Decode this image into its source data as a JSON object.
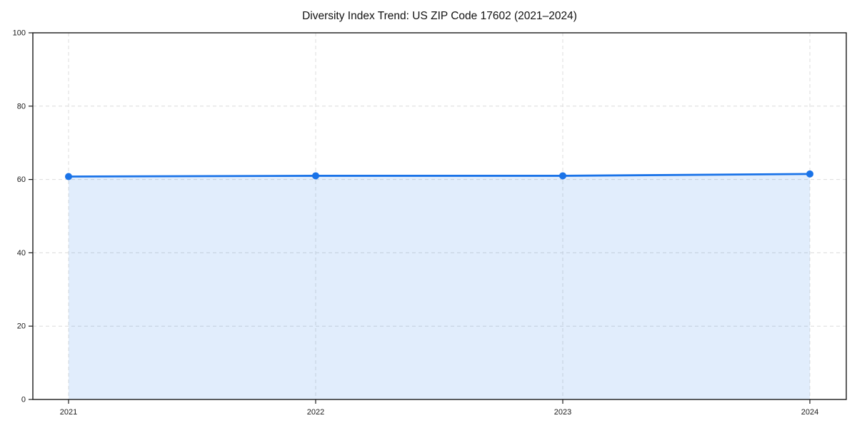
{
  "chart_data": {
    "type": "area",
    "title": "Diversity Index Trend: US ZIP Code 17602 (2021–2024)",
    "xlabel": "",
    "ylabel": "",
    "categories": [
      "2021",
      "2022",
      "2023",
      "2024"
    ],
    "series": [
      {
        "name": "Diversity Index",
        "values": [
          60.8,
          61.0,
          61.0,
          61.5
        ]
      }
    ],
    "ylim": [
      0,
      100
    ],
    "yticks": [
      0,
      20,
      40,
      60,
      80,
      100
    ],
    "grid": "dashed, horizontal and vertical",
    "legend_position": "none",
    "line_color": "#1a73e8",
    "marker": "circle",
    "fill_color": "rgba(26,115,232,0.13)",
    "grid_color": "#dcdcdc",
    "spine_color": "#1a1a1a",
    "tick_label_color": "#1a1a1a",
    "background_color": "#ffffff"
  }
}
